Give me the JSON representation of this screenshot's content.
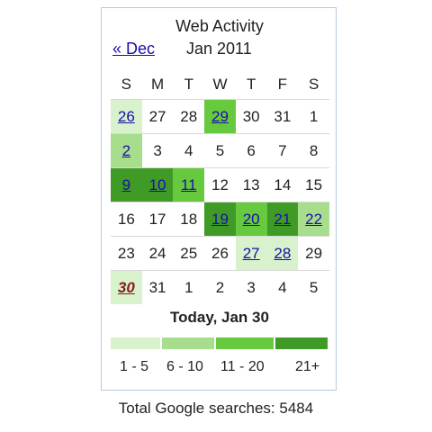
{
  "widget": {
    "title": "Web Activity",
    "prev_month_link": "« Dec",
    "current_month": "Jan 2011",
    "weekdays": [
      "S",
      "M",
      "T",
      "W",
      "T",
      "F",
      "S"
    ],
    "weeks": [
      [
        {
          "d": "26",
          "link": true,
          "level": 1
        },
        {
          "d": "27"
        },
        {
          "d": "28"
        },
        {
          "d": "29",
          "link": true,
          "level": 3
        },
        {
          "d": "30"
        },
        {
          "d": "31"
        },
        {
          "d": "1"
        }
      ],
      [
        {
          "d": "2",
          "link": true,
          "level": 2
        },
        {
          "d": "3"
        },
        {
          "d": "4"
        },
        {
          "d": "5"
        },
        {
          "d": "6"
        },
        {
          "d": "7"
        },
        {
          "d": "8"
        }
      ],
      [
        {
          "d": "9",
          "link": true,
          "level": 4
        },
        {
          "d": "10",
          "link": true,
          "level": 4
        },
        {
          "d": "11",
          "link": true,
          "level": 3
        },
        {
          "d": "12"
        },
        {
          "d": "13"
        },
        {
          "d": "14"
        },
        {
          "d": "15"
        }
      ],
      [
        {
          "d": "16"
        },
        {
          "d": "17"
        },
        {
          "d": "18"
        },
        {
          "d": "19",
          "link": true,
          "level": 4
        },
        {
          "d": "20",
          "link": true,
          "level": 3
        },
        {
          "d": "21",
          "link": true,
          "level": 4
        },
        {
          "d": "22",
          "link": true,
          "level": 2
        }
      ],
      [
        {
          "d": "23"
        },
        {
          "d": "24"
        },
        {
          "d": "25"
        },
        {
          "d": "26"
        },
        {
          "d": "27",
          "link": true,
          "level": 1
        },
        {
          "d": "28",
          "link": true,
          "level": 1
        },
        {
          "d": "29"
        }
      ],
      [
        {
          "d": "30",
          "link": true,
          "level": 1,
          "today": true
        },
        {
          "d": "31"
        },
        {
          "d": "1"
        },
        {
          "d": "2"
        },
        {
          "d": "3"
        },
        {
          "d": "4"
        },
        {
          "d": "5"
        }
      ]
    ],
    "today_label": "Today, Jan 30",
    "legend": [
      {
        "label": "1 - 5",
        "color": "#d7f2cc"
      },
      {
        "label": "6 - 10",
        "color": "#a8dd8d"
      },
      {
        "label": "11 - 20",
        "color": "#67c93d"
      },
      {
        "label": "21+",
        "color": "#3f9b25"
      }
    ]
  },
  "total_searches": "Total Google searches: 5484"
}
